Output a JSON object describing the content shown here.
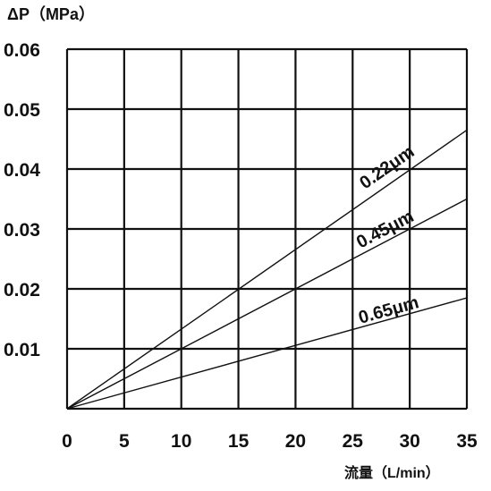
{
  "chart_data": {
    "type": "line",
    "ylabel": "ΔP（MPa）",
    "xlabel": "流量（L/min）",
    "xlim": [
      0,
      35
    ],
    "ylim": [
      0,
      0.06
    ],
    "x_ticks": [
      "0",
      "5",
      "10",
      "15",
      "20",
      "25",
      "30",
      "35"
    ],
    "y_ticks": [
      "0.01",
      "0.02",
      "0.03",
      "0.04",
      "0.05",
      "0.06"
    ],
    "grid": true,
    "series": [
      {
        "name": "0.22μm",
        "x": [
          0,
          35
        ],
        "y": [
          0,
          0.0465
        ]
      },
      {
        "name": "0.45μm",
        "x": [
          0,
          35
        ],
        "y": [
          0,
          0.035
        ]
      },
      {
        "name": "0.65μm",
        "x": [
          0,
          35
        ],
        "y": [
          0,
          0.0185
        ]
      }
    ],
    "colors": {
      "line": "#111111",
      "grid": "#111111",
      "background": "#ffffff"
    }
  }
}
